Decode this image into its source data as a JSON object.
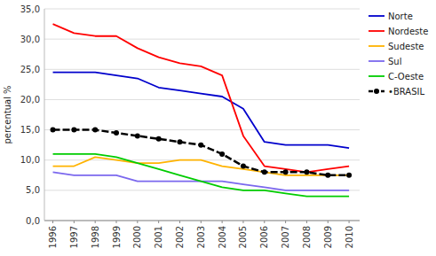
{
  "chart_data": {
    "type": "line",
    "y_label": "percentual %",
    "x": [
      1996,
      1997,
      1998,
      1999,
      2000,
      2001,
      2002,
      2003,
      2004,
      2005,
      2006,
      2007,
      2008,
      2009,
      2010
    ],
    "xlim": [
      1995.6,
      2010.5
    ],
    "xticks": [
      1996,
      1997,
      1998,
      1999,
      2000,
      2001,
      2002,
      2003,
      2004,
      2005,
      2006,
      2007,
      2008,
      2009,
      2010
    ],
    "ylim": [
      0,
      35
    ],
    "yticks": [
      {
        "value": 0,
        "label": "0,0"
      },
      {
        "value": 5,
        "label": "5,0"
      },
      {
        "value": 10,
        "label": "10,0"
      },
      {
        "value": 15,
        "label": "15,0"
      },
      {
        "value": 20,
        "label": "20,0"
      },
      {
        "value": 25,
        "label": "25,0"
      },
      {
        "value": 30,
        "label": "30,0"
      },
      {
        "value": 35,
        "label": "35,0"
      }
    ],
    "grid": "y",
    "legend": "right",
    "series": [
      {
        "name": "Norte",
        "color": "#0000CC",
        "values": [
          24.5,
          24.5,
          24.5,
          24.0,
          23.5,
          22.0,
          21.5,
          21.0,
          20.5,
          18.5,
          13.0,
          12.5,
          12.5,
          12.5,
          12.0
        ]
      },
      {
        "name": "Nordeste",
        "color": "#FF0000",
        "values": [
          32.5,
          31.0,
          30.5,
          30.5,
          28.5,
          27.0,
          26.0,
          25.5,
          24.0,
          14.0,
          9.0,
          8.5,
          8.0,
          8.5,
          9.0
        ]
      },
      {
        "name": "Sudeste",
        "color": "#FFB300",
        "values": [
          9.0,
          9.0,
          10.5,
          10.0,
          9.5,
          9.5,
          10.0,
          10.0,
          9.0,
          8.5,
          8.0,
          7.5,
          7.5,
          7.5,
          7.5
        ]
      },
      {
        "name": "Sul",
        "color": "#7B68EE",
        "values": [
          8.0,
          7.5,
          7.5,
          7.5,
          6.5,
          6.5,
          6.5,
          6.5,
          6.5,
          6.0,
          5.5,
          5.0,
          5.0,
          5.0,
          5.0
        ]
      },
      {
        "name": "C-Oeste",
        "color": "#00CC00",
        "values": [
          11.0,
          11.0,
          11.0,
          10.5,
          9.5,
          8.5,
          7.5,
          6.5,
          5.5,
          5.0,
          5.0,
          4.5,
          4.0,
          4.0,
          4.0
        ]
      },
      {
        "name": "•BRASIL",
        "color": "#000000",
        "line_style": "dashed",
        "marker": "circle",
        "values": [
          15.0,
          15.0,
          15.0,
          14.5,
          14.0,
          13.5,
          13.0,
          12.5,
          11.0,
          9.0,
          8.0,
          8.0,
          8.0,
          7.5,
          7.5
        ]
      }
    ]
  }
}
